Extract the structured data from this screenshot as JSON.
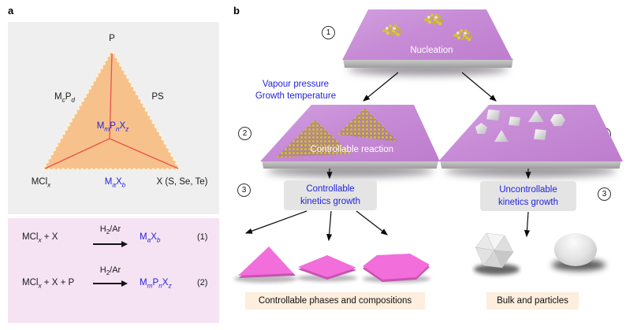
{
  "panel_a": {
    "label": "a",
    "diagram": {
      "apex": [
        [
          "P",
          ""
        ]
      ],
      "left_side": [
        [
          "M",
          ""
        ],
        [
          "c",
          "sub"
        ],
        [
          "P",
          ""
        ],
        [
          "d",
          "sub"
        ]
      ],
      "right_side": [
        [
          "PS",
          ""
        ]
      ],
      "bottom_left": [
        [
          "MCl",
          ""
        ],
        [
          "x",
          "sub"
        ]
      ],
      "bottom_center": [
        [
          "M",
          ""
        ],
        [
          "a",
          "sub"
        ],
        [
          "X",
          ""
        ],
        [
          "b",
          "sub"
        ]
      ],
      "bottom_right": [
        [
          "X (S, Se, Te)",
          ""
        ]
      ],
      "center": [
        [
          "M",
          ""
        ],
        [
          "m",
          "sub"
        ],
        [
          "P",
          ""
        ],
        [
          "n",
          "sub"
        ],
        [
          "X",
          ""
        ],
        [
          "z",
          "sub"
        ]
      ]
    },
    "equations": [
      {
        "reactants": [
          [
            "MCl",
            ""
          ],
          [
            "x",
            "sub"
          ],
          [
            " + X",
            ""
          ]
        ],
        "condition": [
          [
            "H",
            ""
          ],
          [
            "2",
            "subn"
          ],
          [
            "/Ar",
            ""
          ]
        ],
        "product": [
          [
            "M",
            ""
          ],
          [
            "a",
            "sub"
          ],
          [
            "X",
            ""
          ],
          [
            "b",
            "sub"
          ]
        ],
        "number": "(1)"
      },
      {
        "reactants": [
          [
            "MCl",
            ""
          ],
          [
            "x",
            "sub"
          ],
          [
            " + X + P",
            ""
          ]
        ],
        "condition": [
          [
            "H",
            ""
          ],
          [
            "2",
            "subn"
          ],
          [
            "/Ar",
            ""
          ]
        ],
        "product": [
          [
            "M",
            ""
          ],
          [
            "m",
            "sub"
          ],
          [
            "P",
            ""
          ],
          [
            "n",
            "sub"
          ],
          [
            "X",
            ""
          ],
          [
            "z",
            "sub"
          ]
        ],
        "number": "(2)"
      }
    ]
  },
  "panel_b": {
    "label": "b",
    "step_numbers": {
      "one": "1",
      "two": "2",
      "three": "3"
    },
    "conditions": {
      "line1": "Vapour pressure",
      "line2": "Growth temperature"
    },
    "nucleation_label": "Nucleation",
    "controllable_reaction_label": "Controllable reaction",
    "left_box": {
      "line1": "Controllable",
      "line2": "kinetics growth"
    },
    "right_box": {
      "line1": "Uncontrollable",
      "line2": "kinetics growth"
    },
    "left_caption": "Controllable phases and compositions",
    "right_caption": "Bulk and particles"
  },
  "colors": {
    "accent_blue": "#2323dd",
    "triangle_fill": "#f7c18c",
    "triangle_dash": "#fdf3d6",
    "tie_line_red": "#e8524a",
    "substrate_purple": "#c689d6",
    "nuclei_yellow": "#d3c030",
    "shape_pink": "#f16edb",
    "panel_a_top_bg": "#efefef",
    "panel_a_bottom_bg": "#f5e3f4",
    "kinetics_box_bg": "#e4e4e4",
    "caption_bg": "#fdeedd"
  }
}
